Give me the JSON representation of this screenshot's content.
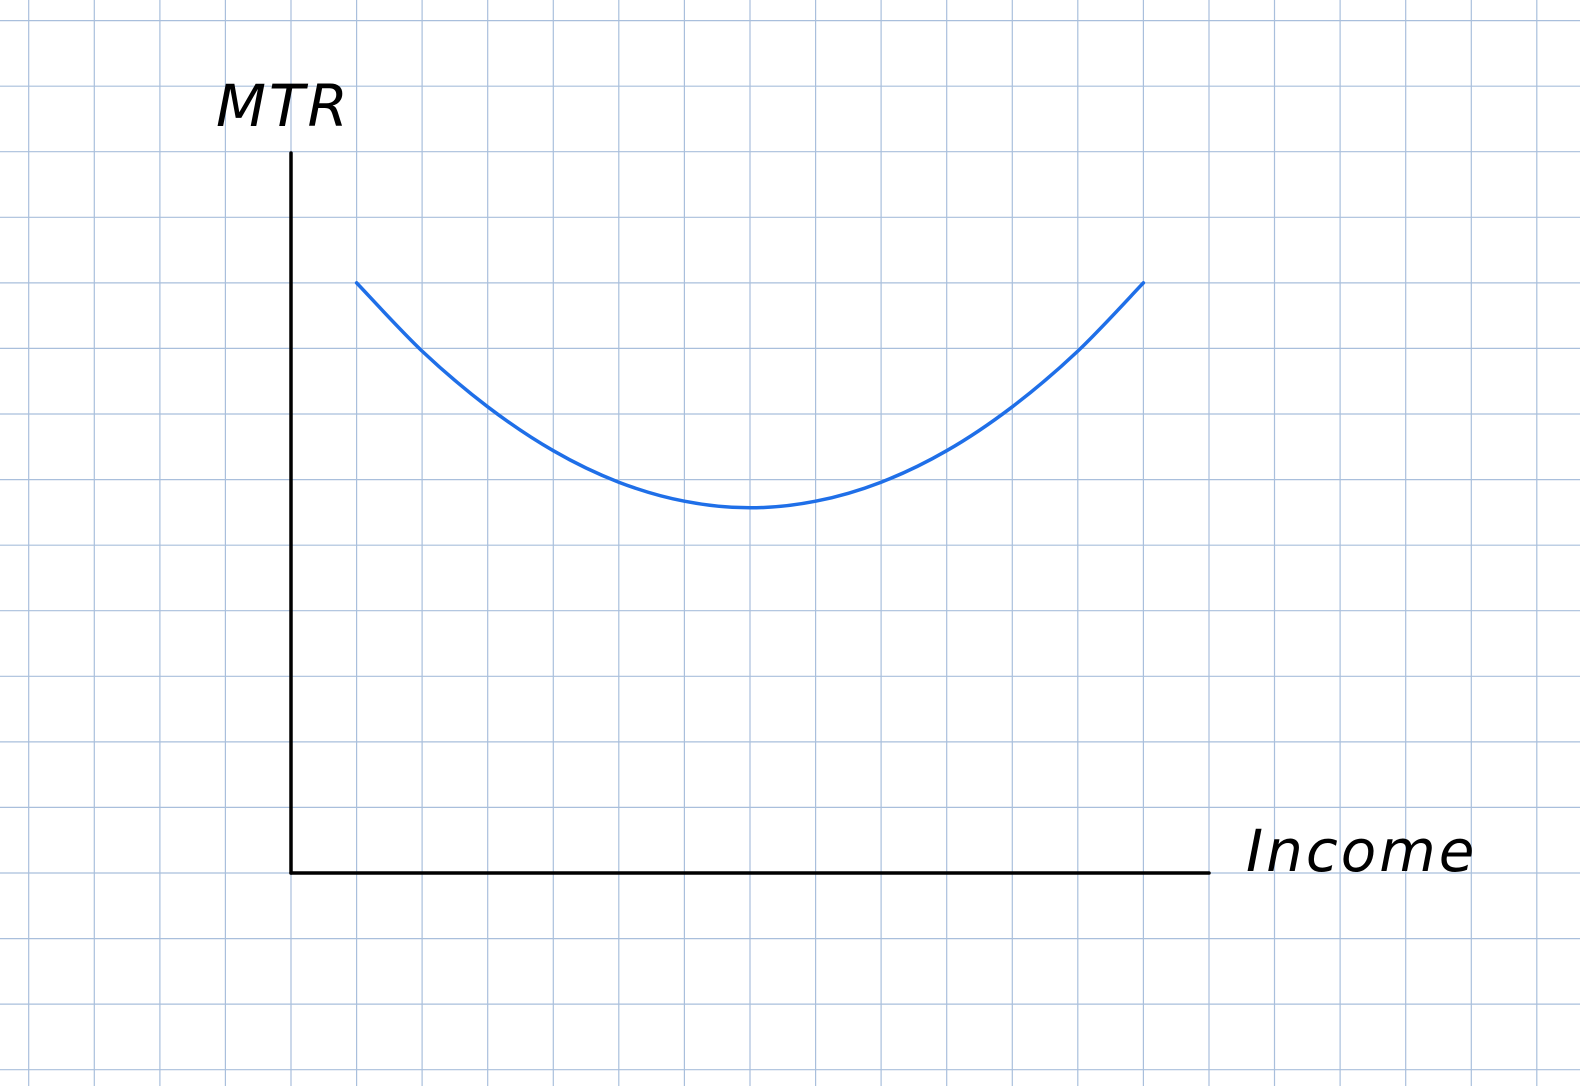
{
  "chart_data": {
    "type": "line",
    "ylabel": "MTR",
    "xlabel": "Income",
    "grid": true,
    "xlim": [
      0,
      14
    ],
    "ylim": [
      0,
      11
    ],
    "series": [
      {
        "color": "#1f6fe8",
        "x": [
          1,
          2,
          3,
          4,
          5,
          6,
          7,
          8,
          9,
          10,
          11,
          12,
          13
        ],
        "y": [
          9,
          7.96,
          7.11,
          6.44,
          5.96,
          5.67,
          5.57,
          5.67,
          5.96,
          6.44,
          7.11,
          7.96,
          9
        ]
      }
    ]
  },
  "colors": {
    "grid": "#a9bfdc",
    "axes": "#000000",
    "curve": "#1f6fe8",
    "background": "#ffffff"
  }
}
